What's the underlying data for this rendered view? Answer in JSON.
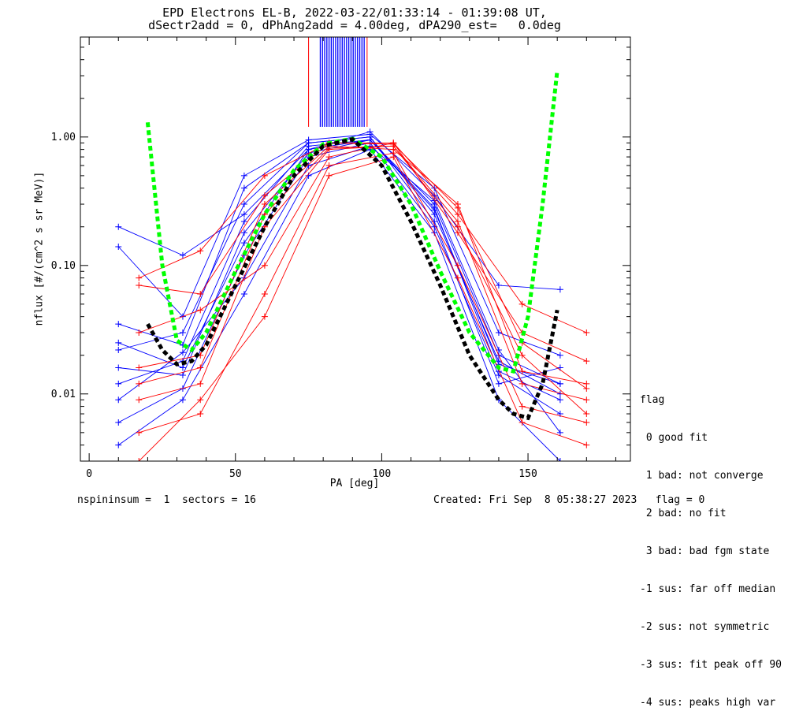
{
  "title_line1": "EPD Electrons EL-B, 2022-03-22/01:33:14 - 01:39:08 UT,",
  "title_line2": "dSectr2add = 0, dPhAng2add = 4.00deg, dPA290_est=   0.0deg",
  "footer_left": "nspininsum =  1  sectors = 16",
  "footer_right": "Created: Fri Sep  8 05:38:27 2023   flag = 0",
  "legend": {
    "title": "flag",
    "items": [
      " 0 good fit",
      " 1 bad: not converge",
      " 2 bad: no fit",
      " 3 bad: bad fgm state",
      "-1 sus: far off median",
      "-2 sus: not symmetric",
      "-3 sus: fit peak off 90",
      "-4 sus: peaks high var"
    ]
  },
  "colors": {
    "series_a": "#0000ff",
    "series_b": "#ff0000",
    "fit": "#00ff00",
    "median_fit": "#000000"
  },
  "chart_data": {
    "type": "line",
    "xlabel": "PA [deg]",
    "ylabel": "nflux [#/(cm^2 s sr MeV)]",
    "xlim": [
      -3,
      185
    ],
    "ylim": [
      0.003,
      6
    ],
    "yscale": "log",
    "xticks": [
      "0",
      "50",
      "100",
      "150"
    ],
    "yticks": [
      "0.01",
      "0.10",
      "1.00"
    ],
    "series": [
      {
        "color": "blue",
        "pa": [
          10,
          32,
          53,
          75,
          96,
          118,
          140,
          161
        ],
        "curves": [
          [
            0.012,
            0.018,
            0.22,
            0.85,
            0.95,
            0.3,
            0.02,
            0.012
          ],
          [
            0.022,
            0.03,
            0.3,
            0.9,
            1.0,
            0.25,
            0.018,
            0.01
          ],
          [
            0.006,
            0.011,
            0.12,
            0.7,
            0.9,
            0.2,
            0.014,
            0.007
          ],
          [
            0.2,
            0.12,
            0.25,
            0.8,
            1.1,
            0.35,
            0.07,
            0.065
          ],
          [
            0.016,
            0.014,
            0.18,
            0.75,
            0.95,
            0.28,
            0.015,
            0.009
          ],
          [
            0.035,
            0.024,
            0.4,
            0.9,
            1.0,
            0.22,
            0.012,
            0.016
          ],
          [
            0.009,
            0.021,
            0.08,
            0.6,
            0.85,
            0.32,
            0.022,
            0.005
          ],
          [
            0.14,
            0.04,
            0.5,
            0.95,
            1.05,
            0.4,
            0.03,
            0.02
          ],
          [
            0.004,
            0.009,
            0.06,
            0.5,
            0.8,
            0.18,
            0.009,
            0.003
          ],
          [
            0.025,
            0.016,
            0.15,
            0.8,
            0.95,
            0.27,
            0.017,
            0.012
          ]
        ]
      },
      {
        "color": "red",
        "pa": [
          17,
          38,
          60,
          82,
          104,
          126,
          148,
          170
        ],
        "curves": [
          [
            0.009,
            0.012,
            0.2,
            0.8,
            0.85,
            0.2,
            0.02,
            0.007
          ],
          [
            0.08,
            0.13,
            0.5,
            0.9,
            0.9,
            0.25,
            0.05,
            0.03
          ],
          [
            0.005,
            0.007,
            0.06,
            0.6,
            0.75,
            0.1,
            0.008,
            0.006
          ],
          [
            0.016,
            0.02,
            0.3,
            0.85,
            0.8,
            0.3,
            0.015,
            0.012
          ],
          [
            0.03,
            0.045,
            0.1,
            0.7,
            0.9,
            0.18,
            0.03,
            0.018
          ],
          [
            0.003,
            0.009,
            0.04,
            0.5,
            0.7,
            0.08,
            0.006,
            0.004
          ],
          [
            0.012,
            0.016,
            0.25,
            0.82,
            0.85,
            0.22,
            0.012,
            0.009
          ],
          [
            0.07,
            0.06,
            0.35,
            0.9,
            0.88,
            0.28,
            0.025,
            0.011
          ]
        ]
      },
      {
        "color": "green",
        "style": "dashed",
        "pa": [
          20,
          25,
          30,
          35,
          40,
          50,
          60,
          70,
          80,
          90,
          100,
          110,
          120,
          130,
          140,
          145,
          150,
          155,
          160
        ],
        "values": [
          1.3,
          0.1,
          0.026,
          0.022,
          0.03,
          0.09,
          0.25,
          0.55,
          0.88,
          0.97,
          0.7,
          0.3,
          0.09,
          0.03,
          0.016,
          0.015,
          0.04,
          0.3,
          3.3
        ]
      },
      {
        "color": "black",
        "style": "dashed",
        "pa": [
          20,
          25,
          30,
          35,
          40,
          50,
          60,
          70,
          80,
          90,
          100,
          110,
          120,
          130,
          140,
          145,
          150,
          155,
          160
        ],
        "values": [
          0.035,
          0.022,
          0.017,
          0.018,
          0.024,
          0.07,
          0.2,
          0.5,
          0.85,
          0.96,
          0.6,
          0.22,
          0.07,
          0.02,
          0.009,
          0.007,
          0.0065,
          0.012,
          0.045
        ]
      }
    ],
    "bin_markers": {
      "color": "blue",
      "pa_from": 79,
      "pa_to": 94,
      "y_bottom": 1.2
    }
  }
}
